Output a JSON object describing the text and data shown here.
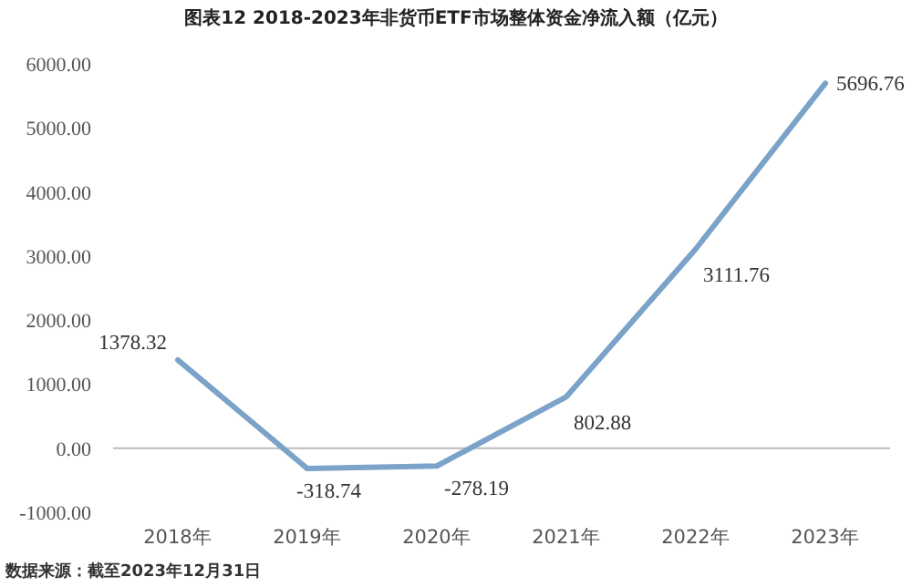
{
  "chart_data": {
    "type": "line",
    "title": "图表12 2018-2023年非货币ETF市场整体资金净流入额（亿元）",
    "categories": [
      "2018年",
      "2019年",
      "2020年",
      "2021年",
      "2022年",
      "2023年"
    ],
    "values": [
      1378.32,
      -318.74,
      -278.19,
      802.88,
      3111.76,
      5696.76
    ],
    "color": "#7ba3c9",
    "data_labels": true,
    "marker": "none",
    "ylim": [
      -1000,
      6000
    ],
    "yticks": [
      {
        "value": -1000,
        "label": "-1000.00"
      },
      {
        "value": 0,
        "label": "0.00"
      },
      {
        "value": 1000,
        "label": "1000.00"
      },
      {
        "value": 2000,
        "label": "2000.00"
      },
      {
        "value": 3000,
        "label": "3000.00"
      },
      {
        "value": 4000,
        "label": "4000.00"
      },
      {
        "value": 5000,
        "label": "5000.00"
      },
      {
        "value": 6000,
        "label": "6000.00"
      }
    ],
    "annotations": [
      "数据来源：截至2023年12月31日"
    ]
  }
}
